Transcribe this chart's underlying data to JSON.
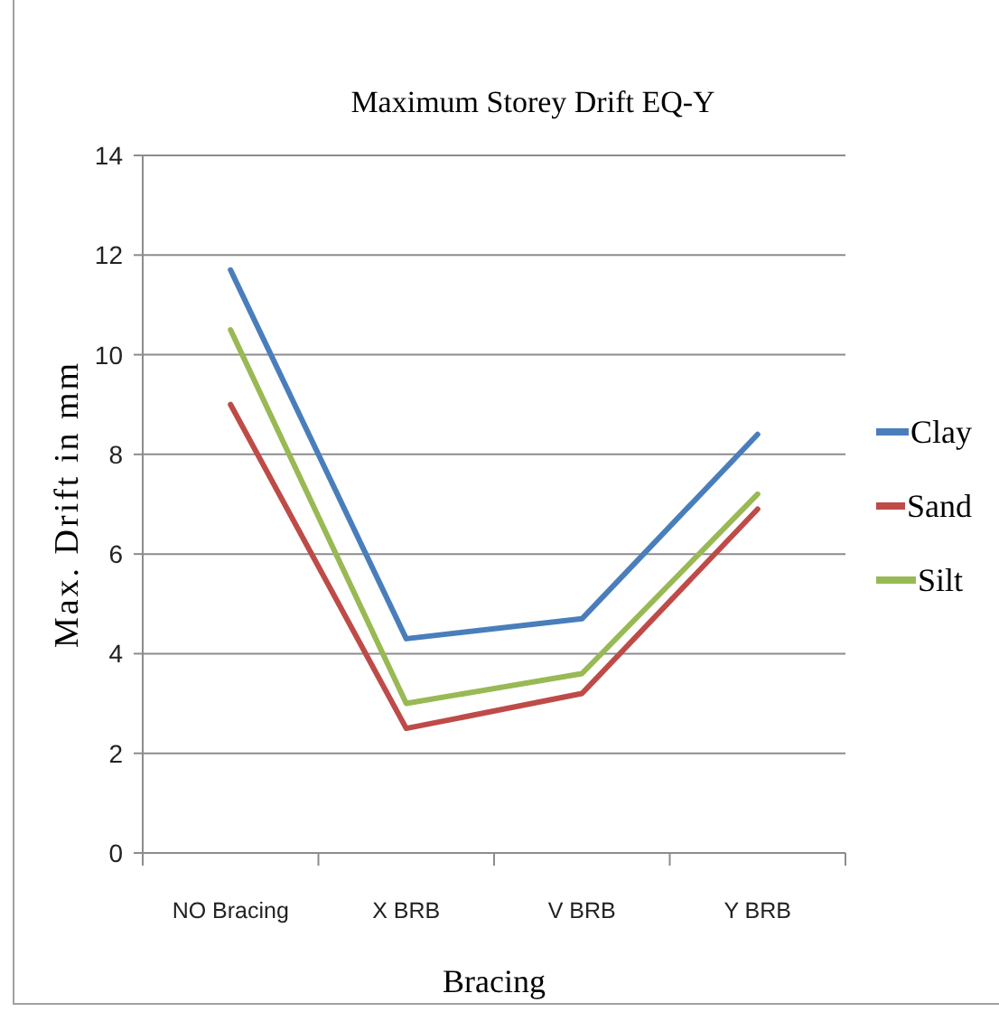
{
  "chart_data": {
    "type": "line",
    "title": "Maximum Storey Drift EQ-Y",
    "xlabel": "Bracing",
    "ylabel": "Max. Drift in mm",
    "categories": [
      "NO Bracing",
      "X BRB",
      "V BRB",
      "Y BRB"
    ],
    "series": [
      {
        "name": "Clay",
        "color": "#4a7ebb",
        "values": [
          11.7,
          4.3,
          4.7,
          8.4
        ]
      },
      {
        "name": "Sand",
        "color": "#be4b48",
        "values": [
          9.0,
          2.5,
          3.2,
          6.9
        ]
      },
      {
        "name": "Silt",
        "color": "#98b954",
        "values": [
          10.5,
          3.0,
          3.6,
          7.2
        ]
      }
    ],
    "ylim": [
      0,
      14
    ],
    "yticks": [
      0,
      2,
      4,
      6,
      8,
      10,
      12,
      14
    ],
    "grid": "y",
    "legend": "right",
    "marker": "none",
    "line_style": "solid"
  }
}
